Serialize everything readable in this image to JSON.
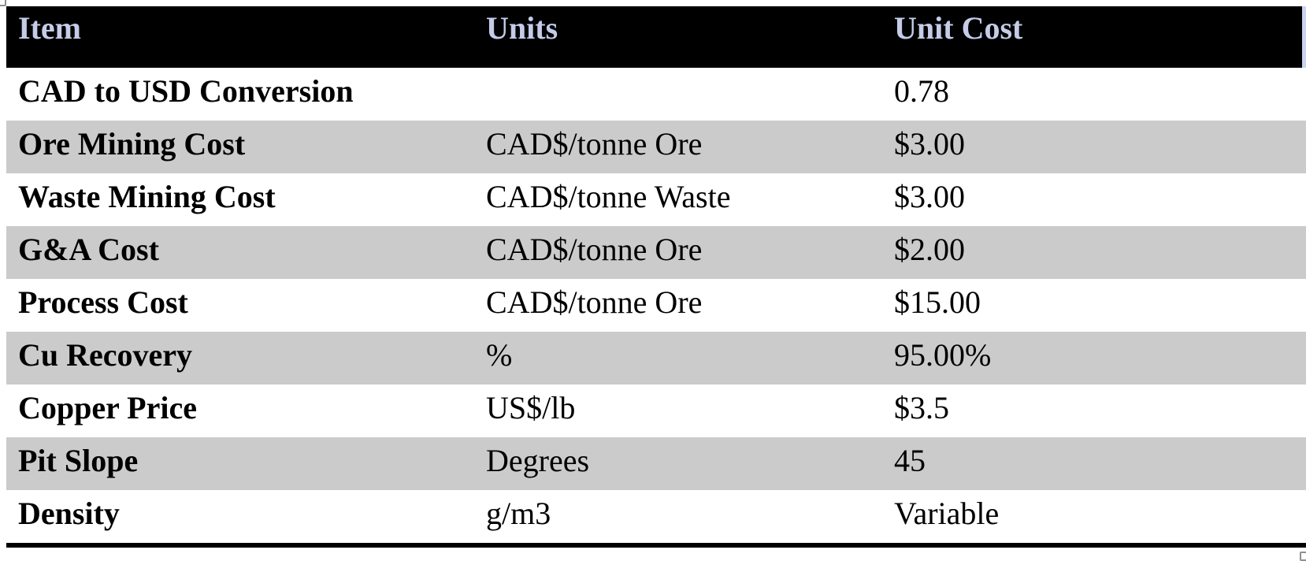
{
  "colors": {
    "header_bg": "#000000",
    "header_text": "#c4cce8",
    "row_alt_gray": "#cbcbcb",
    "row_white": "#ffffff",
    "body_text": "#000000",
    "header_right_strip": "#c9d3ee",
    "bottom_border": "#000000"
  },
  "table": {
    "columns": [
      {
        "key": "item",
        "label": "Item"
      },
      {
        "key": "units",
        "label": "Units"
      },
      {
        "key": "unit_cost",
        "label": "Unit Cost"
      }
    ],
    "rows": [
      {
        "item": "CAD to USD Conversion",
        "units": "",
        "unit_cost": "0.78"
      },
      {
        "item": "Ore Mining Cost",
        "units": "CAD$/tonne Ore",
        "unit_cost": "$3.00"
      },
      {
        "item": "Waste Mining Cost",
        "units": "CAD$/tonne Waste",
        "unit_cost": "$3.00"
      },
      {
        "item": "G&A Cost",
        "units": "CAD$/tonne Ore",
        "unit_cost": "$2.00"
      },
      {
        "item": "Process Cost",
        "units": "CAD$/tonne Ore",
        "unit_cost": "$15.00"
      },
      {
        "item": "Cu Recovery",
        "units": "%",
        "unit_cost": "95.00%"
      },
      {
        "item": "Copper Price",
        "units": "US$/lb",
        "unit_cost": "$3.5"
      },
      {
        "item": "Pit Slope",
        "units": "Degrees",
        "unit_cost": "45"
      },
      {
        "item": "Density",
        "units": "g/m3",
        "unit_cost": "Variable"
      }
    ]
  }
}
